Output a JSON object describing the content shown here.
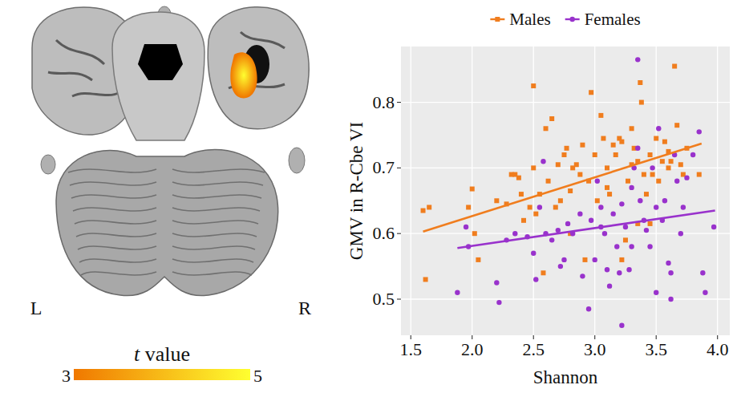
{
  "brain_panel": {
    "left_label": "L",
    "right_label": "R",
    "colorbar": {
      "title": "t value",
      "range": [
        3,
        5
      ],
      "ticks": [
        3,
        5
      ],
      "colors": [
        "#f07800",
        "#ffff30"
      ]
    }
  },
  "chart_data": {
    "type": "scatter",
    "xlabel": "Shannon",
    "ylabel": "GMV in R-Cbe VI",
    "xlim": [
      1.42,
      4.1
    ],
    "ylim": [
      0.445,
      0.885
    ],
    "xticks": [
      1.5,
      {
        "value": 2,
        "label": "2.0"
      },
      2.5,
      {
        "value": 3,
        "label": "3.0"
      },
      3.5,
      {
        "value": 4,
        "label": "4.0"
      }
    ],
    "yticks": [
      0.5,
      0.6,
      0.7,
      0.8
    ],
    "grid": true,
    "legend": "top",
    "series": [
      {
        "name": "Males",
        "color": "#f07d1e",
        "marker": "square",
        "x": [
          1.6,
          1.65,
          1.62,
          1.97,
          2.0,
          2.02,
          2.05,
          2.2,
          2.28,
          2.32,
          2.35,
          2.38,
          2.4,
          2.42,
          2.47,
          2.5,
          2.5,
          2.52,
          2.55,
          2.58,
          2.6,
          2.62,
          2.65,
          2.68,
          2.7,
          2.72,
          2.75,
          2.77,
          2.8,
          2.8,
          2.82,
          2.85,
          2.88,
          2.9,
          2.92,
          2.95,
          2.97,
          3.0,
          3.02,
          3.05,
          3.07,
          3.1,
          3.1,
          3.12,
          3.15,
          3.17,
          3.2,
          3.22,
          3.22,
          3.25,
          3.27,
          3.3,
          3.3,
          3.32,
          3.35,
          3.37,
          3.38,
          3.4,
          3.42,
          3.45,
          3.47,
          3.5,
          3.52,
          3.55,
          3.57,
          3.6,
          3.62,
          3.65,
          3.67,
          3.7,
          3.72,
          3.75,
          3.85,
          3.6,
          3.35,
          3.45
        ],
        "values": [
          0.635,
          0.64,
          0.53,
          0.64,
          0.668,
          0.6,
          0.56,
          0.65,
          0.645,
          0.69,
          0.69,
          0.685,
          0.66,
          0.62,
          0.64,
          0.825,
          0.7,
          0.63,
          0.66,
          0.54,
          0.76,
          0.68,
          0.775,
          0.64,
          0.705,
          0.65,
          0.72,
          0.73,
          0.665,
          0.6,
          0.7,
          0.705,
          0.69,
          0.735,
          0.56,
          0.68,
          0.815,
          0.72,
          0.65,
          0.78,
          0.745,
          0.7,
          0.67,
          0.66,
          0.735,
          0.72,
          0.745,
          0.74,
          0.56,
          0.59,
          0.68,
          0.705,
          0.76,
          0.73,
          0.71,
          0.83,
          0.8,
          0.69,
          0.66,
          0.72,
          0.69,
          0.745,
          0.68,
          0.71,
          0.74,
          0.7,
          0.71,
          0.855,
          0.765,
          0.705,
          0.69,
          0.73,
          0.69,
          0.725,
          0.615,
          0.615
        ],
        "fit": {
          "x": [
            1.6,
            3.87
          ],
          "values": [
            0.603,
            0.737
          ]
        }
      },
      {
        "name": "Females",
        "color": "#9932cc",
        "marker": "circle",
        "x": [
          1.88,
          1.95,
          1.97,
          2.22,
          2.2,
          2.28,
          2.35,
          2.45,
          2.5,
          2.52,
          2.55,
          2.58,
          2.6,
          2.7,
          2.72,
          2.75,
          2.78,
          2.82,
          2.88,
          2.9,
          2.95,
          2.97,
          3.0,
          3.02,
          3.05,
          3.05,
          3.08,
          3.1,
          3.12,
          3.15,
          3.18,
          3.2,
          3.22,
          3.22,
          3.25,
          3.28,
          3.3,
          3.32,
          3.35,
          3.35,
          3.37,
          3.4,
          3.42,
          3.45,
          3.47,
          3.5,
          3.5,
          3.52,
          3.55,
          3.57,
          3.6,
          3.62,
          3.62,
          3.65,
          3.67,
          3.7,
          3.72,
          3.75,
          3.8,
          3.85,
          3.88,
          3.9,
          3.97,
          3.3,
          2.65
        ],
        "values": [
          0.51,
          0.61,
          0.58,
          0.495,
          0.525,
          0.59,
          0.6,
          0.595,
          0.57,
          0.53,
          0.64,
          0.71,
          0.6,
          0.605,
          0.55,
          0.56,
          0.615,
          0.6,
          0.63,
          0.535,
          0.485,
          0.62,
          0.56,
          0.68,
          0.64,
          0.61,
          0.6,
          0.545,
          0.52,
          0.63,
          0.58,
          0.54,
          0.46,
          0.645,
          0.61,
          0.545,
          0.67,
          0.7,
          0.865,
          0.73,
          0.65,
          0.62,
          0.605,
          0.58,
          0.7,
          0.64,
          0.51,
          0.76,
          0.62,
          0.65,
          0.555,
          0.5,
          0.54,
          0.72,
          0.68,
          0.6,
          0.64,
          0.685,
          0.72,
          0.755,
          0.54,
          0.51,
          0.61,
          0.58,
          0.59
        ],
        "fit": {
          "x": [
            1.88,
            3.98
          ],
          "values": [
            0.578,
            0.635
          ]
        }
      }
    ]
  }
}
